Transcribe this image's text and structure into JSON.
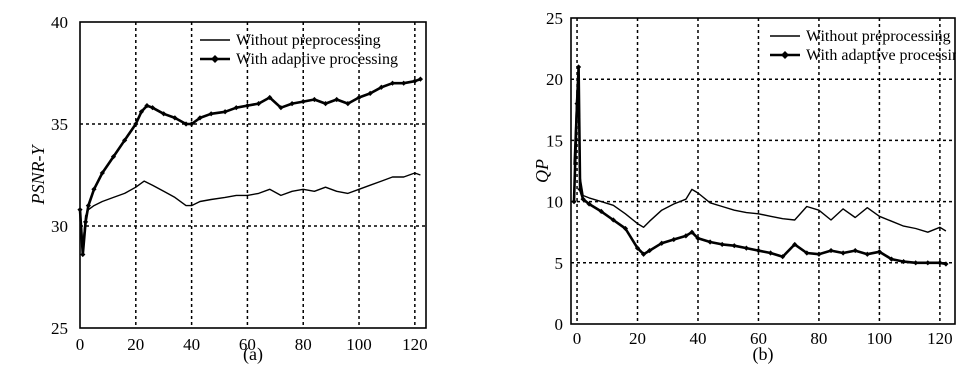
{
  "chart_data": [
    {
      "type": "line",
      "caption": "(a)",
      "xlabel": "",
      "ylabel": "PSNR-Y",
      "xlim": [
        0,
        124
      ],
      "ylim": [
        25,
        40
      ],
      "xticks": [
        0,
        20,
        40,
        60,
        80,
        100,
        120
      ],
      "yticks": [
        25,
        30,
        35,
        40
      ],
      "grid": true,
      "legend_position": "top-right",
      "series": [
        {
          "name": "Without preprocessing",
          "marker": "none",
          "x": [
            0,
            1,
            2,
            3,
            5,
            8,
            12,
            16,
            20,
            23,
            26,
            30,
            34,
            38,
            40,
            43,
            47,
            52,
            56,
            60,
            64,
            68,
            72,
            76,
            80,
            84,
            88,
            92,
            96,
            100,
            104,
            108,
            112,
            116,
            120,
            122
          ],
          "y": [
            30.8,
            29.0,
            30.5,
            30.8,
            31.0,
            31.2,
            31.4,
            31.6,
            31.9,
            32.2,
            32.0,
            31.7,
            31.4,
            31.0,
            31.0,
            31.2,
            31.3,
            31.4,
            31.5,
            31.5,
            31.6,
            31.8,
            31.5,
            31.7,
            31.8,
            31.7,
            31.9,
            31.7,
            31.6,
            31.8,
            32.0,
            32.2,
            32.4,
            32.4,
            32.6,
            32.5
          ]
        },
        {
          "name": "With adaptive processing",
          "marker": "diamond",
          "x": [
            0,
            1,
            2,
            3,
            5,
            8,
            12,
            16,
            20,
            22,
            24,
            26,
            30,
            34,
            38,
            40,
            43,
            47,
            52,
            56,
            60,
            64,
            68,
            72,
            76,
            80,
            84,
            88,
            92,
            96,
            100,
            104,
            108,
            112,
            116,
            120,
            122
          ],
          "y": [
            30.8,
            28.6,
            30.2,
            31.0,
            31.8,
            32.6,
            33.4,
            34.2,
            35.0,
            35.6,
            35.9,
            35.8,
            35.5,
            35.3,
            35.0,
            35.0,
            35.3,
            35.5,
            35.6,
            35.8,
            35.9,
            36.0,
            36.3,
            35.8,
            36.0,
            36.1,
            36.2,
            36.0,
            36.2,
            36.0,
            36.3,
            36.5,
            36.8,
            37.0,
            37.0,
            37.1,
            37.2
          ]
        }
      ]
    },
    {
      "type": "line",
      "caption": "(b)",
      "xlabel": "",
      "ylabel": "QP",
      "xlim": [
        -2,
        125
      ],
      "ylim": [
        0,
        25
      ],
      "xticks": [
        0,
        20,
        40,
        60,
        80,
        100,
        120
      ],
      "yticks": [
        0,
        5,
        10,
        15,
        20,
        25
      ],
      "grid": true,
      "legend_position": "top-right",
      "series": [
        {
          "name": "Without preprocessing",
          "marker": "none",
          "x": [
            -1,
            0,
            0.5,
            1,
            2,
            4,
            8,
            12,
            16,
            20,
            22,
            24,
            28,
            32,
            36,
            38,
            40,
            44,
            48,
            52,
            56,
            60,
            64,
            68,
            72,
            76,
            80,
            84,
            88,
            92,
            96,
            100,
            104,
            108,
            112,
            116,
            120,
            122
          ],
          "y": [
            13,
            19,
            20.5,
            12,
            10.5,
            10.3,
            10.0,
            9.7,
            9.0,
            8.2,
            7.9,
            8.4,
            9.3,
            9.8,
            10.2,
            11.0,
            10.7,
            9.9,
            9.6,
            9.3,
            9.1,
            9.0,
            8.8,
            8.6,
            8.5,
            9.6,
            9.3,
            8.5,
            9.4,
            8.7,
            9.5,
            8.8,
            8.4,
            8.0,
            7.8,
            7.5,
            7.9,
            7.6
          ]
        },
        {
          "name": "With adaptive processing",
          "marker": "diamond",
          "x": [
            -1,
            0,
            0.5,
            1,
            2,
            4,
            8,
            12,
            16,
            20,
            22,
            24,
            28,
            32,
            36,
            38,
            40,
            44,
            48,
            52,
            56,
            60,
            64,
            68,
            72,
            76,
            80,
            84,
            88,
            92,
            96,
            100,
            104,
            108,
            112,
            116,
            120,
            122
          ],
          "y": [
            10,
            18,
            21,
            11,
            10.2,
            9.8,
            9.2,
            8.5,
            7.8,
            6.2,
            5.7,
            6.0,
            6.6,
            6.9,
            7.2,
            7.5,
            7.0,
            6.7,
            6.5,
            6.4,
            6.2,
            6.0,
            5.8,
            5.5,
            6.5,
            5.8,
            5.7,
            6.0,
            5.8,
            6.0,
            5.7,
            5.9,
            5.3,
            5.1,
            5.0,
            5.0,
            5.0,
            4.9
          ]
        }
      ]
    }
  ]
}
